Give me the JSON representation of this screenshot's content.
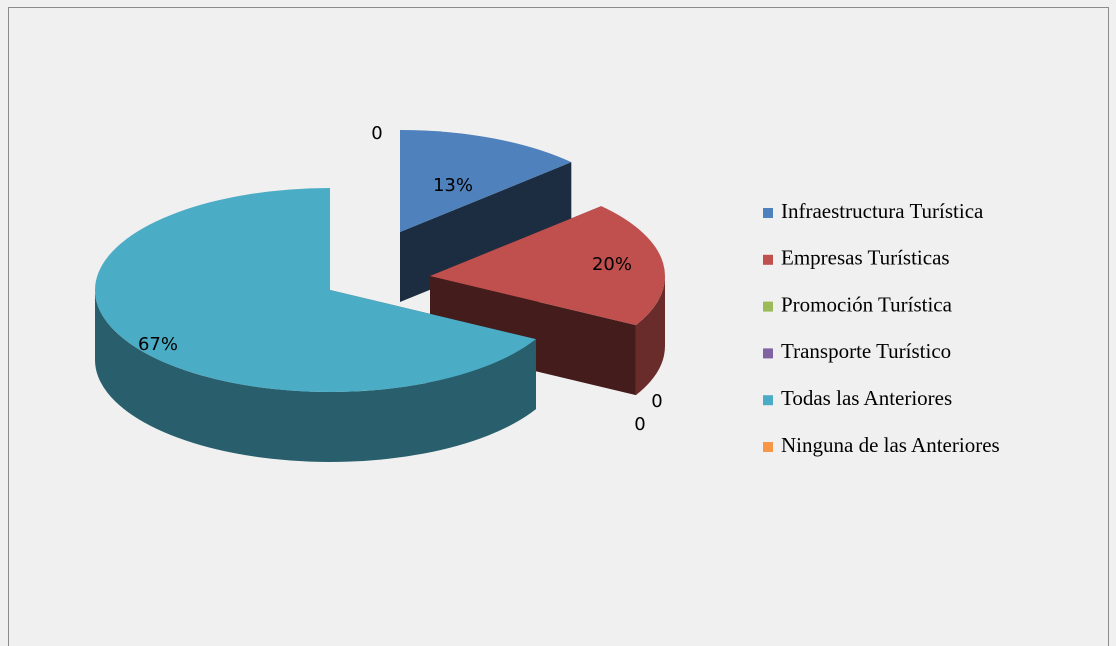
{
  "chart_data": {
    "type": "pie",
    "categories": [
      "Infraestructura Turística",
      "Empresas Turísticas",
      "Promoción Turística",
      "Transporte Turístico",
      "Todas las Anteriores",
      "Ninguna de las Anteriores"
    ],
    "values": [
      13,
      20,
      0,
      0,
      67,
      0
    ],
    "value_labels": [
      "13%",
      "20%",
      "0",
      "0",
      "67%",
      "0"
    ],
    "colors": [
      "#4f81bd",
      "#c0504d",
      "#9bbb59",
      "#8064a2",
      "#4bacc6",
      "#f79646"
    ],
    "legend": "right"
  }
}
